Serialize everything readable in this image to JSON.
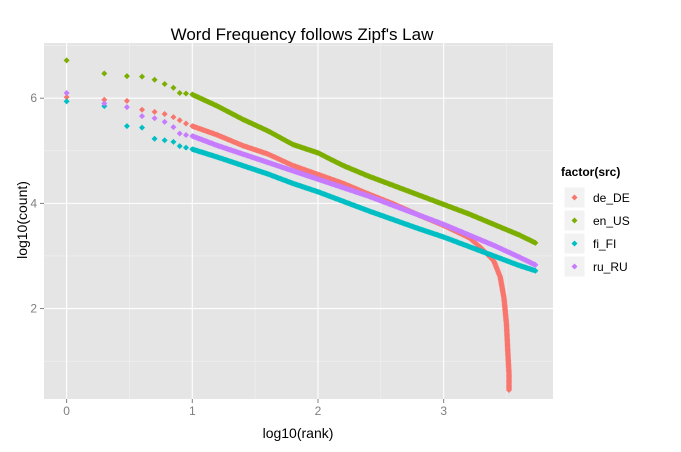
{
  "chart_data": {
    "type": "scatter",
    "title": "Word Frequency follows Zipf's Law",
    "xlabel": "log10(rank)",
    "ylabel": "log10(count)",
    "xlim": [
      -0.18,
      3.87
    ],
    "ylim": [
      0.28,
      7.05
    ],
    "x_ticks": [
      0,
      1,
      2,
      3
    ],
    "x_tick_labels": [
      "0",
      "1",
      "2",
      "3"
    ],
    "y_ticks": [
      2,
      4,
      6
    ],
    "y_tick_labels": [
      "2",
      "4",
      "6"
    ],
    "grid": true,
    "legend_position": "right",
    "legend_title": "factor(src)",
    "series": [
      {
        "name": "de_DE",
        "color": "#F8766D",
        "points": [
          [
            0.0,
            6.02
          ],
          [
            0.3,
            5.97
          ],
          [
            0.48,
            5.95
          ],
          [
            0.6,
            5.78
          ],
          [
            0.7,
            5.74
          ],
          [
            0.78,
            5.7
          ],
          [
            0.85,
            5.64
          ],
          [
            0.9,
            5.58
          ],
          [
            0.95,
            5.52
          ],
          [
            1.0,
            5.47
          ],
          [
            1.2,
            5.3
          ],
          [
            1.4,
            5.1
          ],
          [
            1.6,
            4.94
          ],
          [
            1.8,
            4.72
          ],
          [
            2.0,
            4.55
          ],
          [
            2.2,
            4.38
          ],
          [
            2.4,
            4.18
          ],
          [
            2.6,
            3.99
          ],
          [
            2.8,
            3.78
          ],
          [
            3.0,
            3.58
          ],
          [
            3.2,
            3.35
          ],
          [
            3.3,
            3.15
          ],
          [
            3.4,
            2.9
          ],
          [
            3.45,
            2.6
          ],
          [
            3.48,
            2.2
          ],
          [
            3.5,
            1.7
          ],
          [
            3.51,
            1.2
          ],
          [
            3.52,
            0.75
          ],
          [
            3.52,
            0.45
          ]
        ]
      },
      {
        "name": "en_US",
        "color": "#7CAE00",
        "points": [
          [
            0.0,
            6.72
          ],
          [
            0.3,
            6.47
          ],
          [
            0.48,
            6.42
          ],
          [
            0.6,
            6.41
          ],
          [
            0.7,
            6.35
          ],
          [
            0.78,
            6.27
          ],
          [
            0.85,
            6.2
          ],
          [
            0.9,
            6.1
          ],
          [
            0.95,
            6.09
          ],
          [
            1.0,
            6.07
          ],
          [
            1.2,
            5.85
          ],
          [
            1.4,
            5.6
          ],
          [
            1.6,
            5.38
          ],
          [
            1.8,
            5.12
          ],
          [
            2.0,
            4.96
          ],
          [
            2.2,
            4.72
          ],
          [
            2.4,
            4.52
          ],
          [
            2.6,
            4.34
          ],
          [
            2.8,
            4.16
          ],
          [
            3.0,
            3.98
          ],
          [
            3.2,
            3.8
          ],
          [
            3.4,
            3.6
          ],
          [
            3.6,
            3.4
          ],
          [
            3.73,
            3.25
          ]
        ]
      },
      {
        "name": "fi_FI",
        "color": "#00BFC4",
        "points": [
          [
            0.0,
            5.94
          ],
          [
            0.3,
            5.85
          ],
          [
            0.48,
            5.47
          ],
          [
            0.6,
            5.44
          ],
          [
            0.7,
            5.23
          ],
          [
            0.78,
            5.2
          ],
          [
            0.85,
            5.17
          ],
          [
            0.9,
            5.09
          ],
          [
            0.95,
            5.06
          ],
          [
            1.0,
            5.03
          ],
          [
            1.2,
            4.88
          ],
          [
            1.4,
            4.72
          ],
          [
            1.6,
            4.56
          ],
          [
            1.8,
            4.38
          ],
          [
            2.0,
            4.22
          ],
          [
            2.2,
            4.04
          ],
          [
            2.4,
            3.86
          ],
          [
            2.6,
            3.69
          ],
          [
            2.8,
            3.52
          ],
          [
            3.0,
            3.36
          ],
          [
            3.2,
            3.18
          ],
          [
            3.4,
            3.0
          ],
          [
            3.6,
            2.82
          ],
          [
            3.73,
            2.72
          ]
        ]
      },
      {
        "name": "ru_RU",
        "color": "#C77CFF",
        "points": [
          [
            0.0,
            6.1
          ],
          [
            0.3,
            5.9
          ],
          [
            0.48,
            5.83
          ],
          [
            0.6,
            5.66
          ],
          [
            0.7,
            5.62
          ],
          [
            0.78,
            5.55
          ],
          [
            0.85,
            5.45
          ],
          [
            0.9,
            5.33
          ],
          [
            0.95,
            5.3
          ],
          [
            1.0,
            5.28
          ],
          [
            1.2,
            5.1
          ],
          [
            1.4,
            4.94
          ],
          [
            1.6,
            4.78
          ],
          [
            1.8,
            4.62
          ],
          [
            2.0,
            4.46
          ],
          [
            2.2,
            4.3
          ],
          [
            2.4,
            4.14
          ],
          [
            2.6,
            3.96
          ],
          [
            2.8,
            3.78
          ],
          [
            3.0,
            3.6
          ],
          [
            3.2,
            3.4
          ],
          [
            3.4,
            3.2
          ],
          [
            3.6,
            2.98
          ],
          [
            3.73,
            2.83
          ]
        ]
      }
    ]
  }
}
